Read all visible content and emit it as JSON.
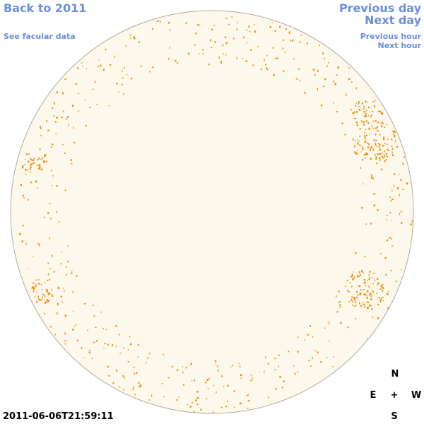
{
  "nav": {
    "back_label": "Back to 2011",
    "facular_label": "See facular data",
    "prev_day_label": "Previous day",
    "next_day_label": "Next day",
    "prev_hour_label": "Previous hour",
    "next_hour_label": "Next hour"
  },
  "compass": {
    "north": "N",
    "east": "E",
    "center": "+",
    "west": "W",
    "south": "S"
  },
  "timestamp": "2011-06-06T21:59:11",
  "colors": {
    "link": "#6a8fdc",
    "disk_fill": "#fdf8ec",
    "disk_outline": "#b4aa9a",
    "facula": "#e8900a"
  }
}
